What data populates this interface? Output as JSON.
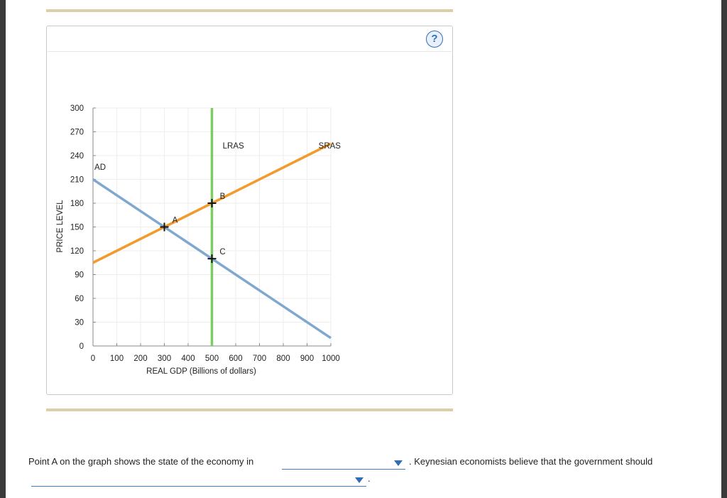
{
  "help_label": "?",
  "chart_data": {
    "type": "line",
    "xlabel": "REAL GDP (Billions of dollars)",
    "ylabel": "PRICE LEVEL",
    "xlim": [
      0,
      1000
    ],
    "ylim": [
      0,
      300
    ],
    "x_ticks": [
      0,
      100,
      200,
      300,
      400,
      500,
      600,
      700,
      800,
      900,
      1000
    ],
    "y_ticks": [
      0,
      30,
      60,
      90,
      120,
      150,
      180,
      210,
      240,
      270,
      300
    ],
    "grid": true,
    "series": [
      {
        "name": "AD",
        "color": "#7ea8d0",
        "points": [
          [
            0,
            210
          ],
          [
            1000,
            10
          ]
        ]
      },
      {
        "name": "SRAS",
        "color": "#f39a2d",
        "points": [
          [
            0,
            105
          ],
          [
            1000,
            255
          ]
        ]
      },
      {
        "name": "LRAS",
        "color": "#7ccc63",
        "points": [
          [
            500,
            0
          ],
          [
            500,
            300
          ]
        ]
      }
    ],
    "curve_labels": [
      {
        "text": "AD",
        "x": 30,
        "y": 222
      },
      {
        "text": "LRAS",
        "x": 590,
        "y": 249
      },
      {
        "text": "SRAS",
        "x": 995,
        "y": 249
      }
    ],
    "points": [
      {
        "label": "A",
        "x": 300,
        "y": 150
      },
      {
        "label": "B",
        "x": 500,
        "y": 180
      },
      {
        "label": "C",
        "x": 500,
        "y": 110
      }
    ]
  },
  "question": {
    "part1": "Point A on the graph shows the state of the economy in",
    "part2": ". Keynesian economists believe that the government should",
    "part3": ".",
    "dropdown1_value": "",
    "dropdown2_value": ""
  }
}
